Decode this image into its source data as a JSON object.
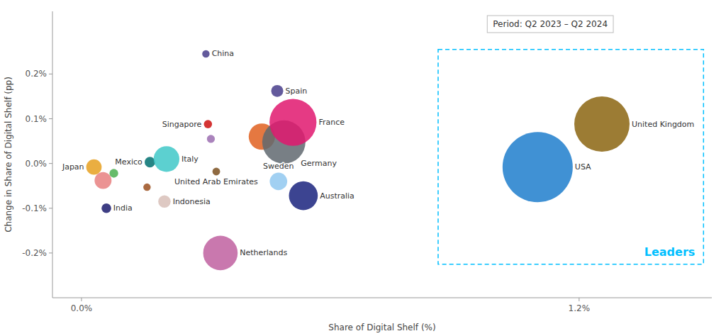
{
  "chart_data": {
    "type": "bubble",
    "xlabel": "Share of Digital Shelf (%)",
    "ylabel": "Change in Share of Digital Shelf (pp)",
    "xlim": [
      -0.07,
      1.52
    ],
    "ylim": [
      -0.3,
      0.34
    ],
    "xticks": [
      {
        "value": 0.0,
        "label": "0.0%"
      },
      {
        "value": 1.2,
        "label": "1.2%"
      }
    ],
    "yticks": [
      {
        "value": -0.2,
        "label": "-0.2%"
      },
      {
        "value": -0.1,
        "label": "-0.1%"
      },
      {
        "value": 0.0,
        "label": "0.0%"
      },
      {
        "value": 0.1,
        "label": "0.1%"
      },
      {
        "value": 0.2,
        "label": "0.2%"
      }
    ],
    "grid": false,
    "series": [
      {
        "labels": [
          "Japan",
          "India",
          "Mexico",
          "Italy",
          "Indonesia",
          "China",
          "Singapore",
          "United Arab Emirates",
          "Netherlands",
          "Spain",
          "Germany",
          "France",
          "Sweden",
          "Australia",
          "USA",
          "United Kingdom"
        ],
        "x": [
          0.03,
          0.06,
          0.165,
          0.205,
          0.2,
          0.3,
          0.305,
          0.325,
          0.335,
          0.472,
          0.488,
          0.51,
          0.475,
          0.535,
          1.1,
          1.255
        ],
        "values": [
          -0.008,
          -0.1,
          0.003,
          0.01,
          -0.085,
          0.245,
          0.088,
          -0.018,
          -0.2,
          0.162,
          0.048,
          0.092,
          -0.04,
          -0.072,
          -0.008,
          0.088
        ],
        "sizes": [
          280,
          110,
          130,
          780,
          180,
          65,
          80,
          70,
          1400,
          170,
          2200,
          2600,
          360,
          980,
          5800,
          3600
        ],
        "colors": [
          "#E6A020",
          "#1C1C6E",
          "#007070",
          "#40C8C8",
          "#D8C0B8",
          "#483D8B",
          "#CC1010",
          "#7B5020",
          "#C060A0",
          "#483D8B",
          "#606870",
          "#E0186E",
          "#90C8F0",
          "#1A237E",
          "#1E7ECD",
          "#8B6510"
        ]
      },
      {
        "x": [
          0.052,
          0.158,
          0.312,
          0.435,
          0.078
        ],
        "values": [
          -0.038,
          -0.053,
          0.055,
          0.06,
          -0.022
        ],
        "sizes": [
          340,
          65,
          75,
          820,
          90
        ],
        "colors": [
          "#E88080",
          "#9B5020",
          "#9B6DB0",
          "#E06020",
          "#4CAF50"
        ]
      }
    ],
    "annotations": [
      {
        "text": "Period: Q2 2023 – Q2 2024"
      },
      {
        "text": "Leaders",
        "x": [
          0.86,
          1.5
        ],
        "y": [
          -0.225,
          0.255
        ]
      }
    ]
  }
}
